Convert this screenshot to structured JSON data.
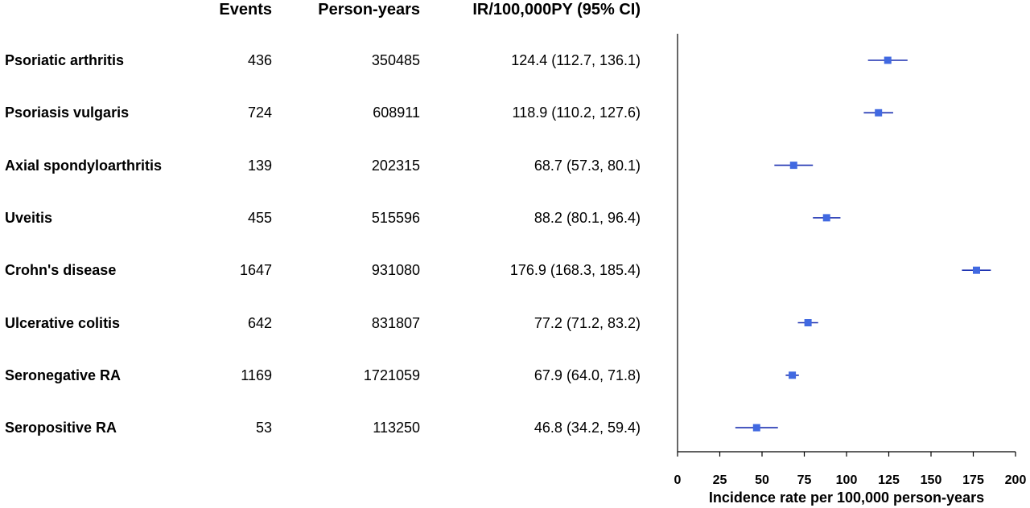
{
  "headers": {
    "events": "Events",
    "person_years": "Person-years",
    "ir": "IR/100,000PY (95% CI)"
  },
  "rows": [
    {
      "name": "Psoriatic arthritis",
      "events": "436",
      "person_years": "350485",
      "ir_text": "124.4 (112.7, 136.1)"
    },
    {
      "name": "Psoriasis vulgaris",
      "events": "724",
      "person_years": "608911",
      "ir_text": "118.9 (110.2, 127.6)"
    },
    {
      "name": "Axial spondyloarthritis",
      "events": "139",
      "person_years": "202315",
      "ir_text": "68.7 (57.3, 80.1)"
    },
    {
      "name": "Uveitis",
      "events": "455",
      "person_years": "515596",
      "ir_text": "88.2 (80.1, 96.4)"
    },
    {
      "name": "Crohn's disease",
      "events": "1647",
      "person_years": "931080",
      "ir_text": "176.9 (168.3, 185.4)"
    },
    {
      "name": "Ulcerative colitis",
      "events": "642",
      "person_years": "831807",
      "ir_text": "77.2 (71.2, 83.2)"
    },
    {
      "name": "Seronegative RA",
      "events": "1169",
      "person_years": "1721059",
      "ir_text": "67.9 (64.0, 71.8)"
    },
    {
      "name": "Seropositive RA",
      "events": "53",
      "person_years": "113250",
      "ir_text": "46.8 (34.2, 59.4)"
    }
  ],
  "chart_data": {
    "type": "scatter",
    "subtype": "forest",
    "xlabel": "Incidence rate per 100,000 person-years",
    "xlim": [
      0,
      200
    ],
    "xticks": [
      0,
      25,
      50,
      75,
      100,
      125,
      150,
      175,
      200
    ],
    "categories": [
      "Psoriatic arthritis",
      "Psoriasis vulgaris",
      "Axial spondyloarthritis",
      "Uveitis",
      "Crohn's disease",
      "Ulcerative colitis",
      "Seronegative RA",
      "Seropositive RA"
    ],
    "series": [
      {
        "values": [
          124.4,
          118.9,
          68.7,
          88.2,
          176.9,
          77.2,
          67.9,
          46.8
        ],
        "lower": [
          112.7,
          110.2,
          57.3,
          80.1,
          168.3,
          71.2,
          64.0,
          34.2
        ],
        "upper": [
          136.1,
          127.6,
          80.1,
          96.4,
          185.4,
          83.2,
          71.8,
          59.4
        ]
      }
    ],
    "colors": {
      "marker": "#4169e1",
      "ci_line": "#1a2fb0",
      "axis": "#000000"
    },
    "grid": false
  }
}
